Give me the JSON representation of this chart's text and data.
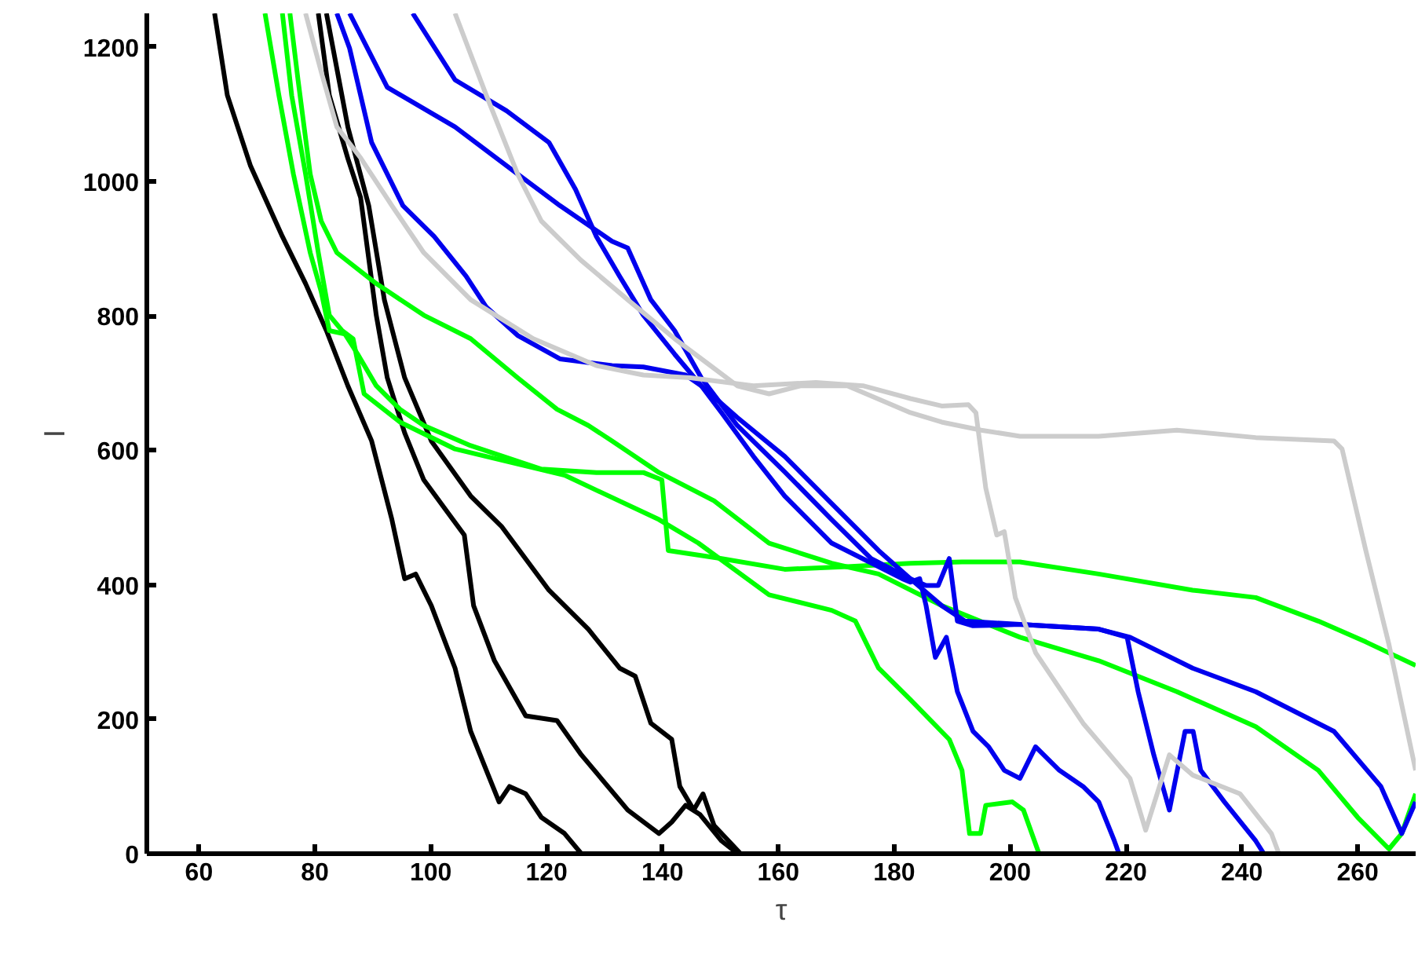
{
  "chart_data": {
    "type": "line",
    "xlabel": "τ",
    "ylabel": "I",
    "xlim": [
      51,
      270
    ],
    "ylim": [
      0,
      1250
    ],
    "xticks": [
      60,
      80,
      100,
      120,
      140,
      160,
      180,
      200,
      220,
      240,
      260
    ],
    "yticks": [
      0,
      200,
      400,
      600,
      800,
      1000,
      1200
    ],
    "marker": "none",
    "line_style": "solid",
    "series": [
      {
        "color": "#000000",
        "x": [
          62.7,
          64.9,
          68.9,
          74.4,
          78.4,
          82,
          85.7,
          89.8,
          93.3,
          95.5,
          97.4,
          100.1,
          104.2,
          106.9,
          109.6,
          111.8,
          113.6,
          116.4,
          119.1,
          123.1,
          126
        ],
        "values": [
          1250,
          1128,
          1023,
          918,
          848,
          778,
          696,
          614,
          497,
          409,
          416,
          369,
          276,
          182,
          124,
          77,
          100,
          89,
          54,
          30,
          0
        ]
      },
      {
        "color": "#000000",
        "x": [
          80.6,
          82.5,
          85.7,
          87.9,
          90.6,
          92.5,
          95.5,
          98.8,
          102.8,
          105.8,
          107.4,
          111,
          116.4,
          121.8,
          126,
          134,
          139.4,
          141.6,
          144,
          146.5,
          150.2,
          153
        ],
        "values": [
          1250,
          1128,
          1034,
          976,
          801,
          708,
          626,
          556,
          509,
          474,
          369,
          287,
          205,
          198,
          147,
          65,
          30,
          47,
          72,
          58,
          19,
          0
        ]
      },
      {
        "color": "#000000",
        "x": [
          82,
          85.7,
          89.3,
          92,
          95.5,
          100.1,
          106.9,
          112.3,
          120.4,
          127.2,
          132.6,
          135.3,
          138,
          141.6,
          143,
          145.4,
          147,
          148.9,
          153.5
        ],
        "values": [
          1250,
          1081,
          964,
          824,
          708,
          614,
          532,
          486,
          392,
          334,
          276,
          264,
          194,
          170,
          100,
          65,
          89,
          42,
          0
        ]
      },
      {
        "color": "#00ff00",
        "x": [
          71.4,
          73.8,
          76.3,
          79.2,
          81.1,
          82.5,
          85.2,
          87.4,
          90.6,
          94.7,
          98.8,
          106.9,
          119.1,
          128.6,
          136.7,
          139.9,
          141,
          150.2,
          161.1,
          171.9,
          182.8,
          191.7,
          201.7,
          215.3,
          231.5,
          242.4,
          253.2,
          261.4,
          270
        ],
        "values": [
          1250,
          1128,
          1011,
          894,
          836,
          778,
          773,
          743,
          696,
          661,
          637,
          607,
          572,
          567,
          567,
          556,
          451,
          439,
          423,
          427,
          432,
          434,
          434,
          416,
          392,
          381,
          346,
          315,
          280
        ]
      },
      {
        "color": "#00ff00",
        "x": [
          74.4,
          76,
          78.4,
          80.6,
          82.5,
          84.7,
          86.6,
          88.5,
          94.7,
          104.2,
          123.1,
          139.4,
          146.2,
          158.4,
          169.2,
          173.3,
          177.3,
          182.8,
          189.5,
          191.7,
          193,
          194.9,
          195.8,
          200.4,
          202.3,
          205
        ],
        "values": [
          1250,
          1128,
          1011,
          894,
          801,
          778,
          766,
          684,
          642,
          602,
          563,
          497,
          462,
          385,
          362,
          346,
          276,
          229,
          170,
          124,
          30,
          30,
          72,
          77,
          65,
          0
        ]
      },
      {
        "color": "#00ff00",
        "x": [
          75.7,
          77.1,
          79.2,
          81.1,
          83.8,
          90.6,
          98.8,
          106.9,
          115,
          121.8,
          127.2,
          131.3,
          139.4,
          148.9,
          158.4,
          169.2,
          177.3,
          188.2,
          201.7,
          215.3,
          228.8,
          242.4,
          253.2,
          260,
          265.4,
          267.6,
          270
        ],
        "values": [
          1250,
          1151,
          1011,
          941,
          894,
          848,
          801,
          766,
          708,
          661,
          637,
          614,
          567,
          525,
          462,
          432,
          416,
          369,
          322,
          287,
          241,
          189,
          124,
          54,
          7,
          30,
          89
        ]
      },
      {
        "color": "#0000ee",
        "x": [
          86,
          92.5,
          104.2,
          115,
          122.3,
          131.3,
          134,
          138,
          142.1,
          146.7,
          152.9,
          161.1,
          169.2,
          176,
          182.8,
          185.5,
          187.6,
          189.5,
          190.9,
          193.6,
          201.7,
          215.3,
          220.2,
          222.1,
          224.8,
          227.5,
          230.2,
          231.6,
          232.9,
          237,
          242.4,
          243.8
        ],
        "values": [
          1250,
          1140,
          1081,
          1011,
          964,
          911,
          901,
          824,
          778,
          708,
          637,
          568,
          497,
          439,
          409,
          399,
          399,
          439,
          346,
          339,
          341,
          334,
          322,
          241,
          147,
          65,
          182,
          182,
          124,
          77,
          19,
          0
        ]
      },
      {
        "color": "#0000ee",
        "x": [
          96.9,
          104.2,
          113.1,
          120.4,
          125,
          128.6,
          132.6,
          136.7,
          142.1,
          146.7,
          152.9,
          161.1,
          169.2,
          177.3,
          182.8,
          188.2,
          192.2,
          215.3,
          220.7,
          231.5,
          242.4,
          255.9,
          264,
          267.6,
          270
        ],
        "values": [
          1250,
          1151,
          1105,
          1058,
          988,
          918,
          859,
          801,
          743,
          696,
          649,
          591,
          521,
          451,
          409,
          369,
          346,
          334,
          322,
          276,
          241,
          182,
          100,
          30,
          77
        ]
      },
      {
        "color": "#0000ee",
        "x": [
          83.8,
          86,
          89.8,
          95.2,
          100.6,
          106.1,
          109.6,
          115,
          122.3,
          131.3,
          136.7,
          144,
          146.7,
          150.2,
          155.7,
          161.1,
          169.2,
          177.3,
          181.4,
          182.8,
          184.4,
          185.5,
          187.1,
          189,
          190.9,
          193.6,
          196.3,
          199,
          201.7,
          204.4,
          208.5,
          212.6,
          215.3,
          218,
          218.8
        ],
        "values": [
          1250,
          1198,
          1058,
          964,
          918,
          859,
          813,
          771,
          736,
          726,
          724,
          712,
          696,
          656,
          591,
          532,
          462,
          427,
          409,
          404,
          409,
          369,
          292,
          322,
          241,
          182,
          159,
          124,
          112,
          159,
          124,
          100,
          77,
          19,
          0
        ]
      },
      {
        "color": "#cccccc",
        "x": [
          78.4,
          81.1,
          83.8,
          87.9,
          93.3,
          98.8,
          106.9,
          117.7,
          128.6,
          136.7,
          144.8,
          155.7,
          166.5,
          174.6,
          182.8,
          188.2,
          192.8,
          194.1,
          195.8,
          197.7,
          199,
          200.9,
          204.4,
          212.6,
          220.7,
          223.4,
          227.5,
          231.5,
          239.7,
          245.1,
          246.4
        ],
        "values": [
          1250,
          1163,
          1081,
          1035,
          964,
          894,
          824,
          766,
          726,
          712,
          708,
          696,
          701,
          696,
          677,
          666,
          668,
          656,
          544,
          474,
          479,
          381,
          299,
          194,
          112,
          35,
          147,
          117,
          89,
          30,
          0
        ]
      },
      {
        "color": "#cccccc",
        "x": [
          104.2,
          109.6,
          115,
          119.1,
          125.9,
          134,
          142.1,
          147.5,
          152.9,
          158.4,
          163.8,
          171.9,
          182.8,
          188.2,
          195,
          201.7,
          215.3,
          228.8,
          242.4,
          255.9,
          257.3,
          261.4,
          265.4,
          270
        ],
        "values": [
          1250,
          1128,
          1011,
          941,
          883,
          824,
          766,
          731,
          696,
          684,
          696,
          696,
          656,
          642,
          630,
          621,
          621,
          630,
          619,
          614,
          602,
          451,
          311,
          124
        ]
      }
    ]
  }
}
